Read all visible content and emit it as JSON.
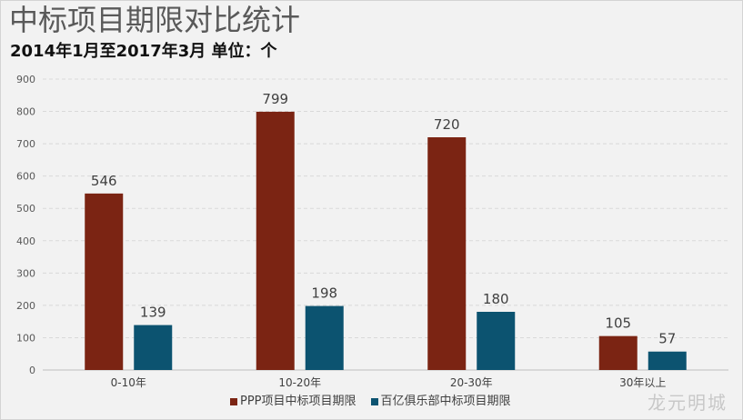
{
  "watermark": "龙元明城",
  "colors": {
    "background": "#F2F2F2",
    "grid": "#D9D9D9",
    "axis": "#BFBFBF",
    "tick_text": "#595959",
    "label_text": "#404040"
  },
  "chart_data": {
    "type": "bar",
    "title": "中标项目期限对比统计",
    "subtitle": "2014年1月至2017年3月 单位：个",
    "xlabel": "",
    "ylabel": "",
    "categories": [
      "0-10年",
      "10-20年",
      "20-30年",
      "30年以上"
    ],
    "series": [
      {
        "name": "PPP项目中标项目期限",
        "values": [
          546,
          799,
          720,
          105
        ],
        "color": "#7B2413"
      },
      {
        "name": "百亿俱乐部中标项目期限",
        "values": [
          139,
          198,
          180,
          57
        ],
        "color": "#0C5370"
      }
    ],
    "ylim": [
      0,
      900
    ],
    "yticks": [
      0,
      100,
      200,
      300,
      400,
      500,
      600,
      700,
      800,
      900
    ],
    "grid": true,
    "data_labels": true,
    "legend": "bottom"
  }
}
